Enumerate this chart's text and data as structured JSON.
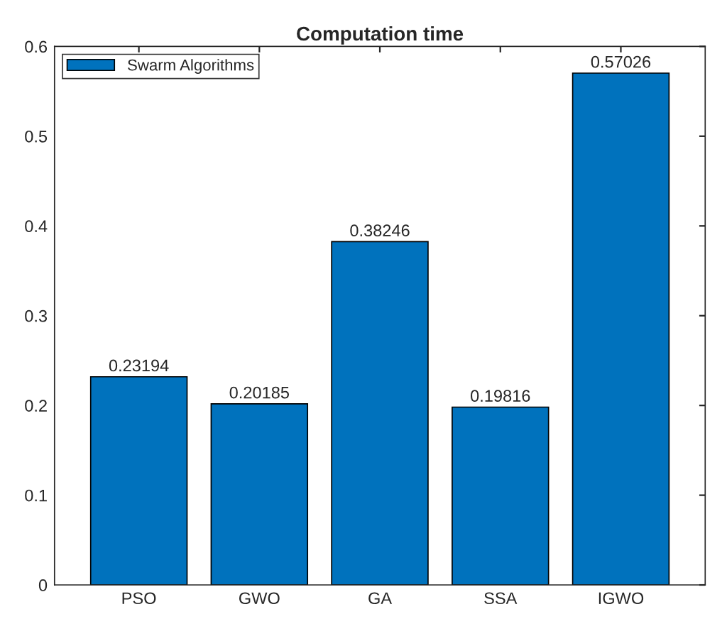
{
  "chart_data": {
    "type": "bar",
    "title": "Computation time",
    "categories": [
      "PSO",
      "GWO",
      "GA",
      "SSA",
      "IGWO"
    ],
    "series": [
      {
        "name": "Swarm Algorithms",
        "color": "#0072bd",
        "values": [
          0.23194,
          0.20185,
          0.38246,
          0.19816,
          0.57026
        ]
      }
    ],
    "ylim": [
      0,
      0.6
    ],
    "yticks": [
      0,
      0.1,
      0.2,
      0.3,
      0.4,
      0.5,
      0.6
    ],
    "data_labels": true,
    "legend": "top left",
    "grid": false
  }
}
